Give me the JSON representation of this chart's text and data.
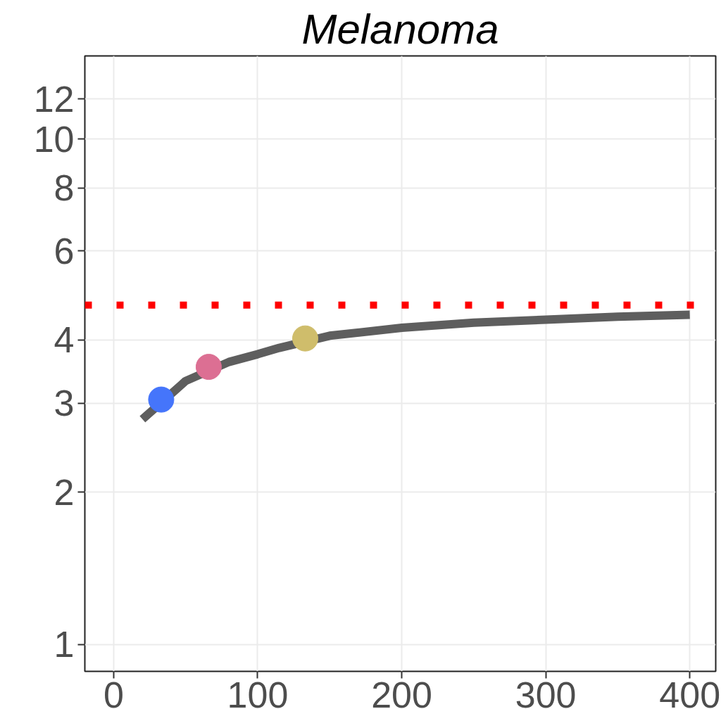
{
  "chart_data": {
    "type": "line",
    "title": "Melanoma",
    "log": "y",
    "grid": true,
    "xlim": [
      -20,
      418
    ],
    "xticks": [
      0,
      100,
      200,
      300,
      400
    ],
    "ylim": [
      0.884,
      14.6
    ],
    "yticks": [
      1,
      2,
      3,
      4,
      6,
      8,
      10,
      12
    ],
    "series": [
      {
        "color": "#5e5e5e",
        "x": [
          20,
          50,
          80,
          100,
          115,
          150,
          200,
          250,
          300,
          350,
          400
        ],
        "values": [
          2.79,
          3.32,
          3.62,
          3.75,
          3.86,
          4.08,
          4.23,
          4.33,
          4.39,
          4.45,
          4.49
        ]
      },
      {
        "type": "scatter",
        "marker": "circle",
        "x": [
          33,
          66,
          133
        ],
        "values": [
          3.05,
          3.54,
          4.03
        ],
        "colors": [
          "#4575fb",
          "#dc6f93",
          "#cfbd6b"
        ]
      }
    ],
    "ref_lines": [
      {
        "axis": "y",
        "value": 4.69,
        "color": "#ff0000",
        "line_style": "dotted"
      }
    ]
  }
}
